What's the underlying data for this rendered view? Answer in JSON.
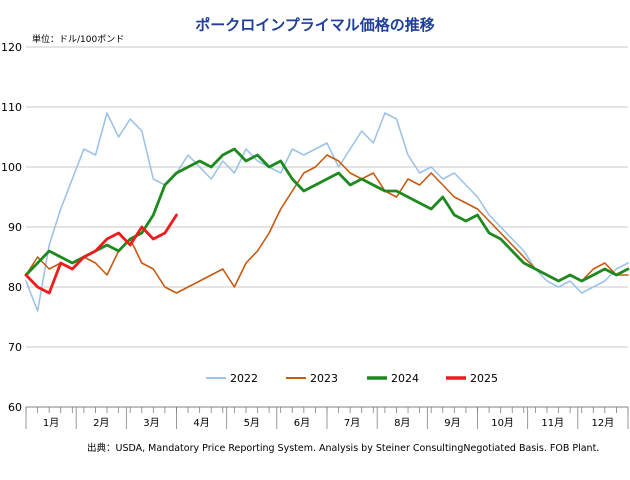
{
  "chart_data": {
    "type": "line",
    "title": "ポークロインプライマル価格の推移",
    "ylabel": "単位：ドル/100ポンド",
    "source": "出典：USDA, Mandatory Price Reporting System. Analysis by Steiner ConsultingNegotiated Basis. FOB Plant.",
    "ylim": [
      60,
      120
    ],
    "yticks": [
      60,
      70,
      80,
      90,
      100,
      110,
      120
    ],
    "xlim": [
      1,
      53
    ],
    "x_unit": "week",
    "month_labels": [
      "1月",
      "2月",
      "3月",
      "4月",
      "5月",
      "6月",
      "7月",
      "8月",
      "9月",
      "10月",
      "11月",
      "12月"
    ],
    "grid": true,
    "legend_position": "bottom",
    "series": [
      {
        "name": "2022",
        "color": "#9dc3e6",
        "x": [
          1,
          2,
          3,
          4,
          5,
          6,
          7,
          8,
          9,
          10,
          11,
          12,
          13,
          14,
          15,
          16,
          17,
          18,
          19,
          20,
          21,
          22,
          23,
          24,
          25,
          26,
          27,
          28,
          29,
          30,
          31,
          32,
          33,
          34,
          35,
          36,
          37,
          38,
          39,
          40,
          41,
          42,
          43,
          44,
          45,
          46,
          47,
          48,
          49,
          50,
          51,
          52,
          53
        ],
        "values": [
          81,
          76,
          87,
          93,
          98,
          103,
          102,
          109,
          105,
          108,
          106,
          98,
          97,
          99,
          102,
          100,
          98,
          101,
          99,
          103,
          101,
          100,
          99,
          103,
          102,
          103,
          104,
          100,
          103,
          106,
          104,
          109,
          108,
          102,
          99,
          100,
          98,
          99,
          97,
          95,
          92,
          90,
          88,
          86,
          83,
          81,
          80,
          81,
          79,
          80,
          81,
          83,
          84
        ]
      },
      {
        "name": "2023",
        "color": "#c55a11",
        "x": [
          1,
          2,
          3,
          4,
          5,
          6,
          7,
          8,
          9,
          10,
          11,
          12,
          13,
          14,
          15,
          16,
          17,
          18,
          19,
          20,
          21,
          22,
          23,
          24,
          25,
          26,
          27,
          28,
          29,
          30,
          31,
          32,
          33,
          34,
          35,
          36,
          37,
          38,
          39,
          40,
          41,
          42,
          43,
          44,
          45,
          46,
          47,
          48,
          49,
          50,
          51,
          52,
          53
        ],
        "values": [
          82,
          85,
          83,
          84,
          83,
          85,
          84,
          82,
          86,
          88,
          84,
          83,
          80,
          79,
          80,
          81,
          82,
          83,
          80,
          84,
          86,
          89,
          93,
          96,
          99,
          100,
          102,
          101,
          99,
          98,
          99,
          96,
          95,
          98,
          97,
          99,
          97,
          95,
          94,
          93,
          91,
          89,
          87,
          85,
          83,
          82,
          81,
          82,
          81,
          83,
          84,
          82,
          82
        ]
      },
      {
        "name": "2024",
        "color": "#1e8a1e",
        "x": [
          1,
          2,
          3,
          4,
          5,
          6,
          7,
          8,
          9,
          10,
          11,
          12,
          13,
          14,
          15,
          16,
          17,
          18,
          19,
          20,
          21,
          22,
          23,
          24,
          25,
          26,
          27,
          28,
          29,
          30,
          31,
          32,
          33,
          34,
          35,
          36,
          37,
          38,
          39,
          40,
          41,
          42,
          43,
          44,
          45,
          46,
          47,
          48,
          49,
          50,
          51,
          52,
          53
        ],
        "values": [
          82,
          84,
          86,
          85,
          84,
          85,
          86,
          87,
          86,
          88,
          89,
          92,
          97,
          99,
          100,
          101,
          100,
          102,
          103,
          101,
          102,
          100,
          101,
          98,
          96,
          97,
          98,
          99,
          97,
          98,
          97,
          96,
          96,
          95,
          94,
          93,
          95,
          92,
          91,
          92,
          89,
          88,
          86,
          84,
          83,
          82,
          81,
          82,
          81,
          82,
          83,
          82,
          83
        ]
      },
      {
        "name": "2025",
        "color": "#ee1c1c",
        "x": [
          1,
          2,
          3,
          4,
          5,
          6,
          7,
          8,
          9,
          10,
          11,
          12,
          13,
          14
        ],
        "values": [
          82,
          80,
          79,
          84,
          83,
          85,
          86,
          88,
          89,
          87,
          90,
          88,
          89,
          92
        ]
      }
    ]
  }
}
